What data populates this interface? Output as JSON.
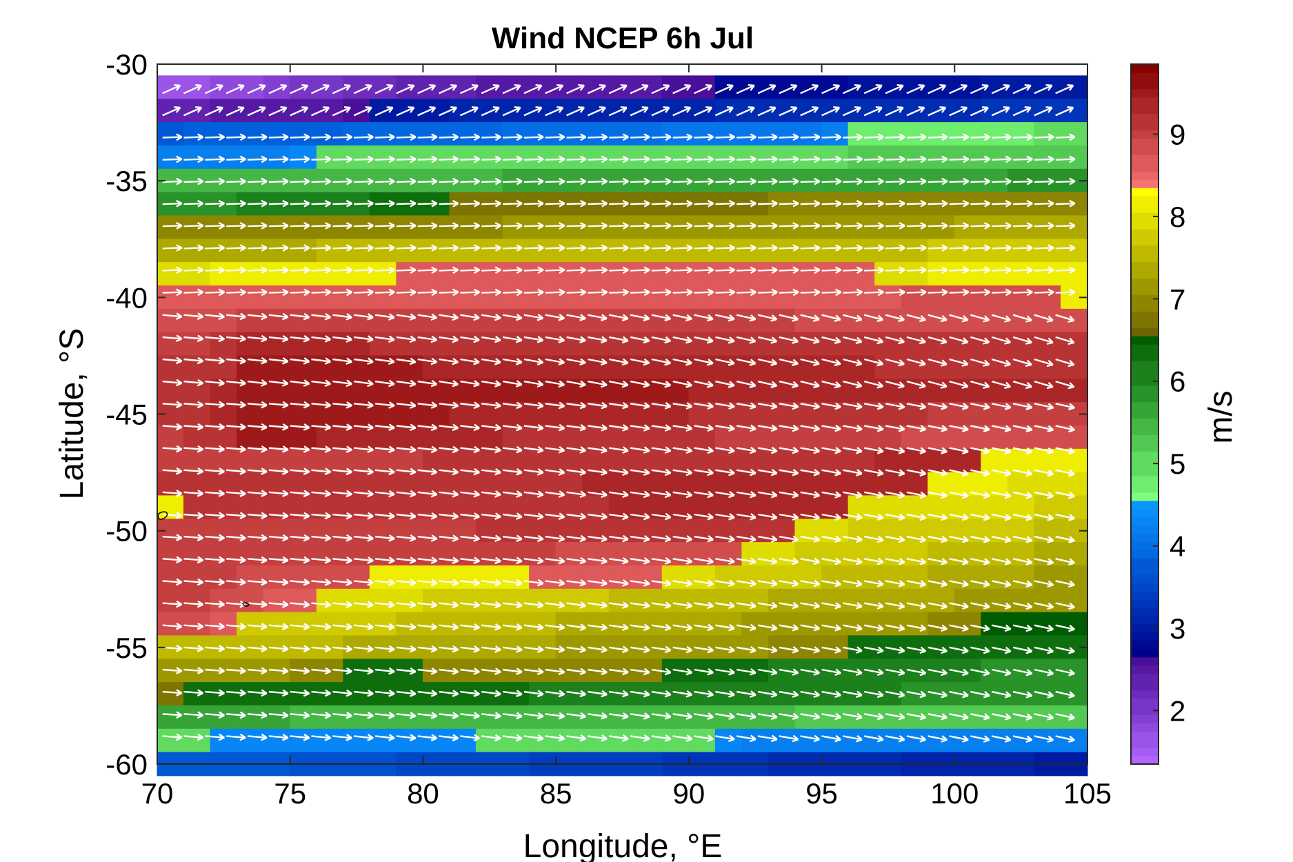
{
  "chart_data": {
    "type": "heatmap",
    "title": "Wind NCEP 6h Jul",
    "xlabel": "Longitude, °E",
    "ylabel": "Latitude, °S",
    "xlim": [
      70,
      105
    ],
    "ylim": [
      -60,
      -30
    ],
    "x_ticks": [
      70,
      75,
      80,
      85,
      90,
      95,
      100,
      105
    ],
    "y_ticks": [
      -30,
      -35,
      -40,
      -45,
      -50,
      -55,
      -60
    ],
    "colorbar": {
      "label": "m/s",
      "range": [
        1.35,
        9.85
      ],
      "ticks": [
        2,
        3,
        4,
        5,
        6,
        7,
        8,
        9
      ],
      "colormap": [
        {
          "lo": 1.35,
          "hi": 2.65,
          "from": "#b266ff",
          "to": "#4a0f99"
        },
        {
          "lo": 2.65,
          "hi": 3.65,
          "from": "#00008b",
          "to": "#0050d0"
        },
        {
          "lo": 3.65,
          "hi": 4.55,
          "from": "#0050d0",
          "to": "#0a96ff"
        },
        {
          "lo": 4.55,
          "hi": 6.55,
          "from": "#7cff7c",
          "to": "#005c00"
        },
        {
          "lo": 6.55,
          "hi": 8.35,
          "from": "#6e6400",
          "to": "#ffff00"
        },
        {
          "lo": 8.35,
          "hi": 9.85,
          "from": "#f77272",
          "to": "#850000"
        }
      ]
    },
    "grid_longitude": [
      70,
      71,
      72,
      73,
      74,
      75,
      76,
      77,
      78,
      79,
      80,
      81,
      82,
      83,
      84,
      85,
      86,
      87,
      88,
      89,
      90,
      91,
      92,
      93,
      94,
      95,
      96,
      97,
      98,
      99,
      100,
      101,
      102,
      103,
      104
    ],
    "grid_latitude": [
      -31,
      -32,
      -33,
      -34,
      -35,
      -36,
      -37,
      -38,
      -39,
      -40,
      -41,
      -42,
      -43,
      -44,
      -45,
      -46,
      -47,
      -48,
      -49,
      -50,
      -51,
      -52,
      -53,
      -54,
      -55,
      -56,
      -57,
      -58,
      -59,
      -60
    ],
    "wind_speed_profile_description": "values in m/s per latitude row, piecewise along longitude: [from_lon, to_lon, start_speed, end_speed]",
    "wind_speed_rows": [
      {
        "lat": -31,
        "segments": [
          [
            70,
            80,
            1.6,
            2.4
          ],
          [
            80,
            90,
            2.4,
            2.6
          ],
          [
            90,
            104,
            2.7,
            3.0
          ]
        ]
      },
      {
        "lat": -32,
        "segments": [
          [
            70,
            77,
            2.4,
            2.6
          ],
          [
            77,
            104,
            3.0,
            3.3
          ]
        ]
      },
      {
        "lat": -33,
        "segments": [
          [
            70,
            95,
            3.8,
            4.2
          ],
          [
            96,
            104,
            4.8,
            4.9
          ]
        ]
      },
      {
        "lat": -34,
        "segments": [
          [
            70,
            75,
            4.2,
            4.3
          ],
          [
            76,
            104,
            4.9,
            5.2
          ]
        ]
      },
      {
        "lat": -35,
        "segments": [
          [
            70,
            104,
            5.4,
            5.8
          ]
        ]
      },
      {
        "lat": -36,
        "segments": [
          [
            70,
            80,
            5.9,
            6.3
          ],
          [
            81,
            104,
            6.7,
            7.0
          ]
        ]
      },
      {
        "lat": -37,
        "segments": [
          [
            70,
            104,
            6.9,
            7.3
          ]
        ]
      },
      {
        "lat": -38,
        "segments": [
          [
            70,
            104,
            7.4,
            7.7
          ]
        ]
      },
      {
        "lat": -39,
        "segments": [
          [
            70,
            78,
            8.0,
            8.2
          ],
          [
            79,
            96,
            8.6,
            8.7
          ],
          [
            97,
            104,
            8.0,
            8.2
          ]
        ]
      },
      {
        "lat": -40,
        "segments": [
          [
            70,
            103,
            8.6,
            8.8
          ],
          [
            104,
            104,
            8.1,
            8.1
          ]
        ]
      },
      {
        "lat": -41,
        "segments": [
          [
            70,
            72,
            8.8,
            8.9
          ],
          [
            72,
            104,
            9.0,
            8.9
          ]
        ]
      },
      {
        "lat": -42,
        "segments": [
          [
            70,
            72,
            9.0,
            9.1
          ],
          [
            72,
            104,
            9.3,
            9.1
          ]
        ]
      },
      {
        "lat": -43,
        "segments": [
          [
            70,
            72,
            9.1,
            9.2
          ],
          [
            72,
            104,
            9.5,
            9.2
          ]
        ]
      },
      {
        "lat": -44,
        "segments": [
          [
            70,
            72,
            9.1,
            9.3
          ],
          [
            72,
            104,
            9.6,
            9.3
          ]
        ]
      },
      {
        "lat": -45,
        "segments": [
          [
            70,
            72,
            9.1,
            9.3
          ],
          [
            72,
            104,
            9.6,
            9.0
          ]
        ]
      },
      {
        "lat": -46,
        "segments": [
          [
            70,
            72,
            9.0,
            9.2
          ],
          [
            72,
            104,
            9.5,
            8.8
          ]
        ]
      },
      {
        "lat": -47,
        "segments": [
          [
            70,
            100,
            9.0,
            9.3
          ],
          [
            101,
            104,
            8.1,
            8.1
          ]
        ]
      },
      {
        "lat": -48,
        "segments": [
          [
            70,
            98,
            9.1,
            9.4
          ],
          [
            99,
            104,
            8.1,
            8.0
          ]
        ]
      },
      {
        "lat": -49,
        "segments": [
          [
            70,
            70,
            8.2,
            8.2
          ],
          [
            71,
            95,
            9.2,
            9.3
          ],
          [
            96,
            104,
            8.0,
            7.8
          ]
        ]
      },
      {
        "lat": -50,
        "segments": [
          [
            70,
            93,
            9.0,
            9.2
          ],
          [
            94,
            104,
            7.9,
            7.6
          ]
        ]
      },
      {
        "lat": -51,
        "segments": [
          [
            70,
            91,
            9.0,
            8.9
          ],
          [
            92,
            104,
            7.9,
            7.4
          ]
        ]
      },
      {
        "lat": -52,
        "segments": [
          [
            70,
            77,
            9.0,
            8.8
          ],
          [
            78,
            83,
            8.2,
            8.2
          ],
          [
            84,
            88,
            8.6,
            8.6
          ],
          [
            89,
            104,
            7.9,
            7.2
          ]
        ]
      },
      {
        "lat": -53,
        "segments": [
          [
            70,
            75,
            9.0,
            8.7
          ],
          [
            75,
            104,
            8.0,
            7.1
          ]
        ]
      },
      {
        "lat": -54,
        "segments": [
          [
            70,
            72,
            8.9,
            8.7
          ],
          [
            73,
            100,
            7.8,
            7.0
          ],
          [
            101,
            104,
            6.5,
            6.5
          ]
        ]
      },
      {
        "lat": -55,
        "segments": [
          [
            70,
            95,
            7.6,
            7.0
          ],
          [
            96,
            104,
            6.4,
            6.3
          ]
        ]
      },
      {
        "lat": -56,
        "segments": [
          [
            70,
            76,
            7.2,
            7.0
          ],
          [
            77,
            79,
            6.4,
            6.4
          ],
          [
            80,
            88,
            6.9,
            6.9
          ],
          [
            89,
            104,
            6.3,
            5.9
          ]
        ]
      },
      {
        "lat": -57,
        "segments": [
          [
            70,
            70,
            6.8,
            6.8
          ],
          [
            71,
            104,
            6.4,
            5.9
          ]
        ]
      },
      {
        "lat": -58,
        "segments": [
          [
            70,
            104,
            5.6,
            5.2
          ]
        ]
      },
      {
        "lat": -59,
        "segments": [
          [
            70,
            71,
            5.0,
            5.0
          ],
          [
            72,
            81,
            4.3,
            4.3
          ],
          [
            82,
            90,
            4.9,
            4.9
          ],
          [
            91,
            104,
            4.3,
            4.2
          ]
        ]
      },
      {
        "lat": -60,
        "segments": [
          [
            70,
            104,
            3.8,
            3.0
          ]
        ]
      }
    ],
    "wind_direction": "predominantly eastward (westerlies); northeastward near -30 to -33, southeastward south of -43 toward 105°E"
  }
}
